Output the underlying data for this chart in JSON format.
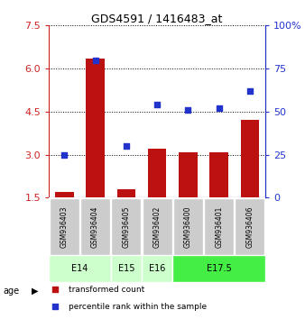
{
  "title": "GDS4591 / 1416483_at",
  "samples": [
    "GSM936403",
    "GSM936404",
    "GSM936405",
    "GSM936402",
    "GSM936400",
    "GSM936401",
    "GSM936406"
  ],
  "transformed_count": [
    1.7,
    6.35,
    1.8,
    3.2,
    3.1,
    3.1,
    4.2
  ],
  "percentile_rank": [
    25,
    80,
    30,
    54,
    51,
    52,
    62
  ],
  "left_ylim": [
    1.5,
    7.5
  ],
  "left_yticks": [
    1.5,
    3.0,
    4.5,
    6.0,
    7.5
  ],
  "right_ylim": [
    0,
    100
  ],
  "right_yticks": [
    0,
    25,
    50,
    75,
    100
  ],
  "right_yticklabels": [
    "0",
    "25",
    "50",
    "75",
    "100%"
  ],
  "bar_color": "#bb1111",
  "dot_color": "#2233cc",
  "bar_bottom": 1.5,
  "age_groups": [
    {
      "label": "E14",
      "samples": [
        0,
        1
      ],
      "color": "#ccffcc"
    },
    {
      "label": "E15",
      "samples": [
        2
      ],
      "color": "#ccffcc"
    },
    {
      "label": "E16",
      "samples": [
        3
      ],
      "color": "#ccffcc"
    },
    {
      "label": "E17.5",
      "samples": [
        4,
        5,
        6
      ],
      "color": "#44ee44"
    }
  ],
  "legend_red_label": "transformed count",
  "legend_blue_label": "percentile rank within the sample",
  "left_axis_color": "#cc2222",
  "right_axis_color": "#2233cc",
  "sample_box_color": "#cccccc",
  "sample_box_edge_color": "#aaaaaa"
}
